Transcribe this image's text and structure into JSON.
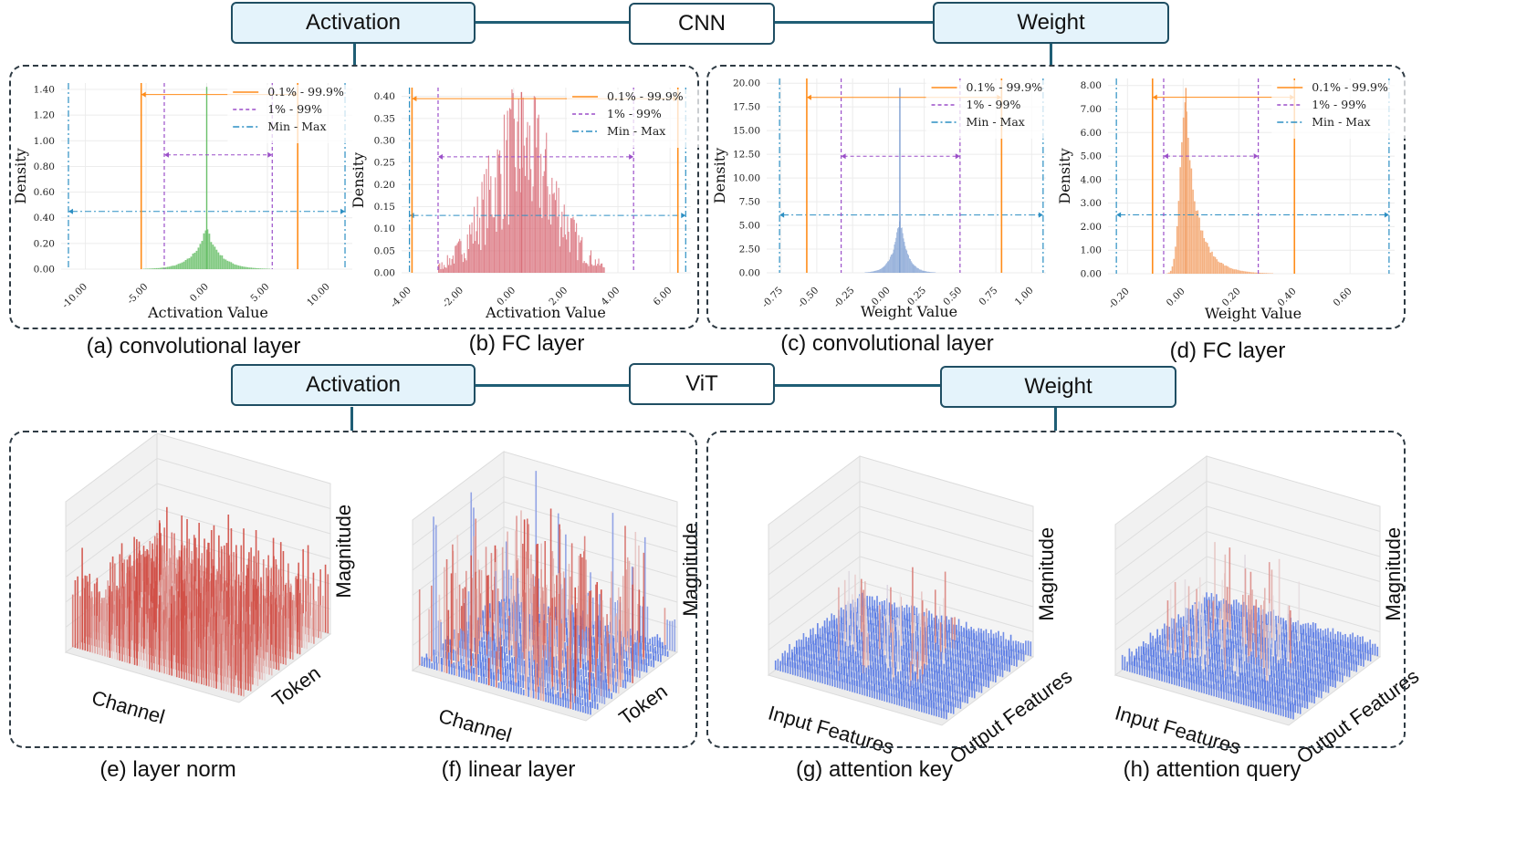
{
  "colors": {
    "orange": "#ff8c1a",
    "purple": "#9b4fc9",
    "cyan": "#2c8fc3",
    "green": "#6ac06a",
    "red": "#d9707a",
    "blue": "#7d9ed1",
    "peach": "#f3a36b",
    "header_fill": "#e4f3fb",
    "border": "#1f4e63"
  },
  "headers": {
    "cnn": {
      "left": "Activation",
      "center": "CNN",
      "right": "Weight"
    },
    "vit": {
      "left": "Activation",
      "center": "ViT",
      "right": "Weight"
    }
  },
  "legend": {
    "p01": "0.1% - 99.9%",
    "p1": "1% - 99%",
    "minmax": "Min - Max"
  },
  "captions": {
    "a": "(a) convolutional layer",
    "b": "(b) FC layer",
    "c": "(c) convolutional layer",
    "d": "(d) FC layer",
    "e": "(e) layer norm",
    "f": "(f) linear layer",
    "g": "(g) attention key",
    "h": "(h) attention query"
  },
  "chart_data": [
    {
      "id": "a",
      "type": "histogram",
      "xlabel": "Activation Value",
      "ylabel": "Density",
      "xlim": [
        -12,
        12
      ],
      "ylim": [
        0,
        1.45
      ],
      "xticks": [
        "-10.00",
        "-5.00",
        "0.00",
        "5.00",
        "10.00"
      ],
      "xtick_values": [
        -10,
        -5,
        0,
        5,
        10
      ],
      "yticks": [
        "0.00",
        "0.20",
        "0.40",
        "0.60",
        "0.80",
        "1.00",
        "1.20",
        "1.40"
      ],
      "ytick_values": [
        0,
        0.2,
        0.4,
        0.6,
        0.8,
        1.0,
        1.2,
        1.4
      ],
      "dist": "laplace",
      "center": 0,
      "scale": 1.1,
      "peak": 0.32,
      "spike": 1.42,
      "spread": 6,
      "bars": 80,
      "color": "#6ac06a",
      "lines": {
        "p01": [
          -5.4,
          7.5
        ],
        "p1": [
          -3.5,
          5.4
        ],
        "minmax": [
          -11.4,
          11.4
        ]
      },
      "arrow_y": {
        "p01": 1.36,
        "p1": 0.89,
        "minmax": 0.45
      }
    },
    {
      "id": "b",
      "type": "histogram",
      "xlabel": "Activation Value",
      "ylabel": "Density",
      "xlim": [
        -4.3,
        6.8
      ],
      "ylim": [
        0,
        0.42
      ],
      "xticks": [
        "-4.00",
        "-2.00",
        "0.00",
        "2.00",
        "4.00",
        "6.00"
      ],
      "xtick_values": [
        -4,
        -2,
        0,
        2,
        4,
        6
      ],
      "yticks": [
        "0.00",
        "0.05",
        "0.10",
        "0.15",
        "0.20",
        "0.25",
        "0.30",
        "0.35",
        "0.40"
      ],
      "ytick_values": [
        0,
        0.05,
        0.1,
        0.15,
        0.2,
        0.25,
        0.3,
        0.35,
        0.4
      ],
      "dist": "gauss",
      "center": 0.3,
      "scale": 1.3,
      "peak": 0.3,
      "spike": 0.41,
      "spread": 3.2,
      "bars": 150,
      "color": "#d9707a",
      "noisy": true,
      "lines": {
        "p01": [
          -3.9,
          6.3
        ],
        "p1": [
          -2.9,
          4.6
        ],
        "minmax": [
          -4.0,
          6.6
        ]
      },
      "arrow_y": {
        "p01": 0.395,
        "p1": 0.263,
        "minmax": 0.13
      }
    },
    {
      "id": "c",
      "type": "histogram",
      "xlabel": "Weight Value",
      "ylabel": "Density",
      "xlim": [
        -0.85,
        1.1
      ],
      "ylim": [
        0,
        20.5
      ],
      "xticks": [
        "-0.75",
        "-0.50",
        "-0.25",
        "0.00",
        "0.25",
        "0.50",
        "0.75",
        "1.00"
      ],
      "xtick_values": [
        -0.75,
        -0.5,
        -0.25,
        0,
        0.25,
        0.5,
        0.75,
        1.0
      ],
      "yticks": [
        "0.00",
        "2.50",
        "5.00",
        "7.50",
        "10.00",
        "12.50",
        "15.00",
        "17.50",
        "20.00"
      ],
      "ytick_values": [
        0,
        2.5,
        5,
        7.5,
        10,
        12.5,
        15,
        17.5,
        20
      ],
      "dist": "laplace",
      "center": 0.08,
      "scale": 0.05,
      "peak": 6.0,
      "spike": 19.5,
      "spread": 0.35,
      "bars": 120,
      "color": "#7d9ed1",
      "lines": {
        "p01": [
          -0.57,
          0.79
        ],
        "p1": [
          -0.33,
          0.5
        ],
        "minmax": [
          -0.76,
          1.08
        ]
      },
      "arrow_y": {
        "p01": 18.5,
        "p1": 12.3,
        "minmax": 6.1
      }
    },
    {
      "id": "d",
      "type": "histogram",
      "xlabel": "Weight Value",
      "ylabel": "Density",
      "xlim": [
        -0.27,
        0.76
      ],
      "ylim": [
        0,
        8.3
      ],
      "xticks": [
        "-0.20",
        "0.00",
        "0.20",
        "0.40",
        "0.60"
      ],
      "xtick_values": [
        -0.2,
        0,
        0.2,
        0.4,
        0.6
      ],
      "yticks": [
        "0.00",
        "1.00",
        "2.00",
        "3.00",
        "4.00",
        "5.00",
        "6.00",
        "7.00",
        "8.00"
      ],
      "ytick_values": [
        0,
        1,
        2,
        3,
        4,
        5,
        6,
        7,
        8
      ],
      "dist": "skew",
      "center": 0.01,
      "scale": 0.03,
      "peak": 7.9,
      "spike": 7.9,
      "spread": 0.4,
      "bars": 140,
      "color": "#f3a36b",
      "lines": {
        "p01": [
          -0.11,
          0.4
        ],
        "p1": [
          -0.07,
          0.27
        ],
        "minmax": [
          -0.24,
          0.74
        ]
      },
      "arrow_y": {
        "p01": 7.5,
        "p1": 5.0,
        "minmax": 2.5
      }
    },
    {
      "id": "e",
      "type": "surface3d",
      "xlabel": "Channel",
      "ylabel": "Token",
      "zlabel": "Magnitude",
      "style": "dense-red"
    },
    {
      "id": "f",
      "type": "surface3d",
      "xlabel": "Channel",
      "ylabel": "Token",
      "zlabel": "Magnitude",
      "style": "spiky"
    },
    {
      "id": "g",
      "type": "surface3d",
      "xlabel": "Input Features",
      "ylabel": "Output Features",
      "zlabel": "Magnitude",
      "style": "flat-blue"
    },
    {
      "id": "h",
      "type": "surface3d",
      "xlabel": "Input Features",
      "ylabel": "Output Features",
      "zlabel": "Magnitude",
      "style": "flat-blue-noisy"
    }
  ]
}
